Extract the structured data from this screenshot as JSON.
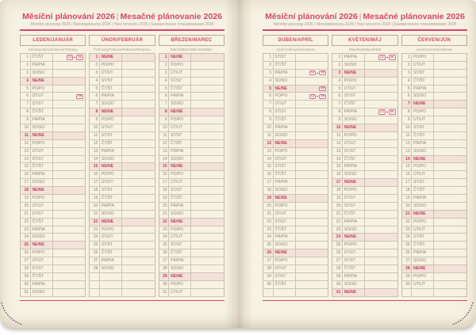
{
  "header": {
    "title_left": "Měsíční plánování 2026",
    "separator": "|",
    "title_right": "Mesačné plánovanie 2026",
    "subtitle": "Monthly planning 2026 | Monatsplanung 2026 | Havi tervezés 2026 | Ежемесячное планирование 2026"
  },
  "weekday_labels": [
    "PO/PO",
    "ÚT/UT",
    "ST/ST",
    "ČT/ŠT",
    "PÁ/PIA",
    "SO/SO",
    "NE/NE"
  ],
  "badge_labels": {
    "cz": "CZ",
    "sk": "SK"
  },
  "colors": {
    "accent_red": "#d6466b",
    "sunday_text": "#c23d5e",
    "sunday_row_bg": "#f2e2da",
    "page_bg": "#f7f2e4",
    "grid_border": "#c9bda5",
    "body_text": "#8d8577",
    "muted_text": "#a59c8b"
  },
  "grid_rows_per_column": 31,
  "pages": [
    {
      "side": "left",
      "months": [
        {
          "title": "LEDEN/JANUÁR",
          "subtitle": "January/Januar/Január/Январь",
          "days_in_month": 31,
          "start_weekday_index": 3,
          "holiday_flags": {
            "1": [
              "cz",
              "sk"
            ],
            "6": [
              "sk"
            ]
          }
        },
        {
          "title": "ÚNOR/FEBRUÁR",
          "subtitle": "February/Februar/Február/Февраль",
          "days_in_month": 28,
          "start_weekday_index": 6,
          "holiday_flags": {}
        },
        {
          "title": "BŘEZEN/MAREC",
          "subtitle": "March/März/Március/Март",
          "days_in_month": 31,
          "start_weekday_index": 6,
          "holiday_flags": {}
        }
      ]
    },
    {
      "side": "right",
      "months": [
        {
          "title": "DUBEN/APRÍL",
          "subtitle": "April/April/Április/Апрель",
          "days_in_month": 30,
          "start_weekday_index": 2,
          "holiday_flags": {
            "3": [
              "cz",
              "sk"
            ],
            "5": [
              "sk"
            ],
            "6": [
              "cz",
              "sk"
            ]
          }
        },
        {
          "title": "KVĚTEN/MÁJ",
          "subtitle": "May/Mai/Május/Май",
          "days_in_month": 31,
          "start_weekday_index": 4,
          "holiday_flags": {
            "1": [
              "cz",
              "sk"
            ],
            "8": [
              "cz",
              "sk"
            ]
          }
        },
        {
          "title": "ČERVEN/JÚN",
          "subtitle": "June/Juni/Június/Июнь",
          "days_in_month": 30,
          "start_weekday_index": 0,
          "holiday_flags": {}
        }
      ]
    }
  ]
}
